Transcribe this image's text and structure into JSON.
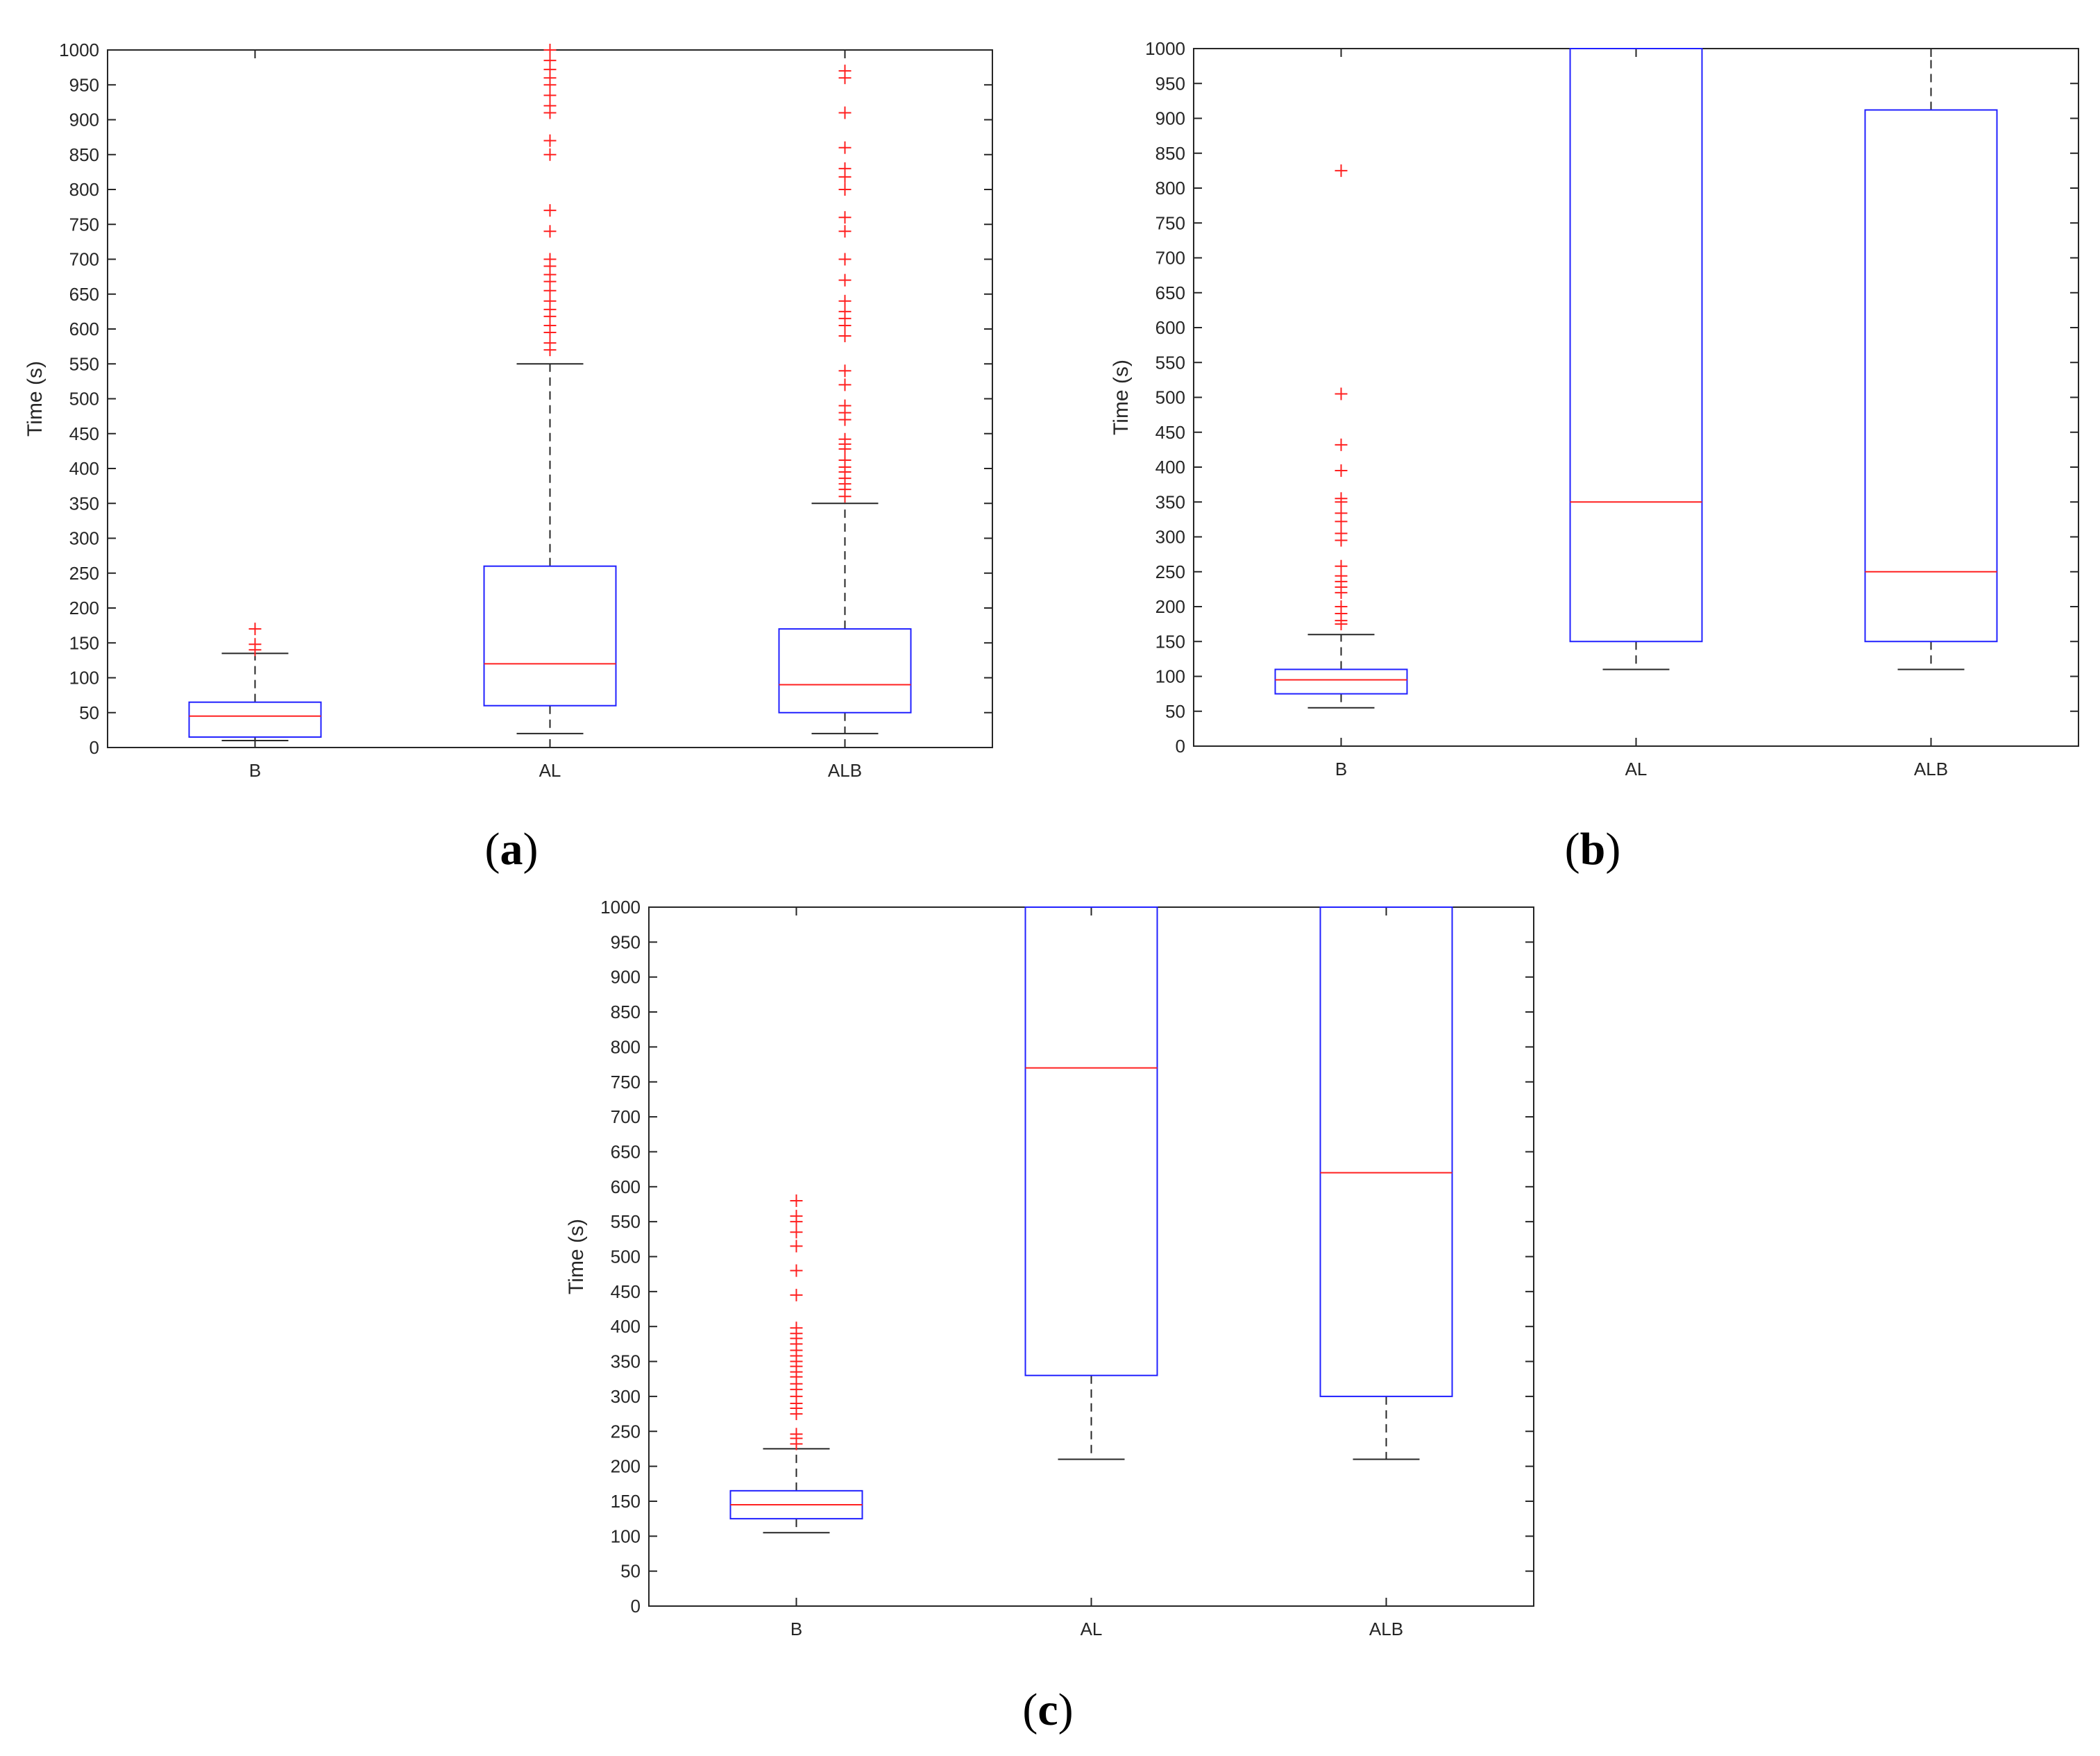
{
  "chart_data": [
    {
      "type": "box",
      "panel": "a",
      "caption": {
        "open": "(",
        "label": "a",
        "close": ")"
      },
      "title": "",
      "xlabel": "",
      "ylabel": "Time (s)",
      "ylim": [
        0,
        1000
      ],
      "yticks": [
        0,
        50,
        100,
        150,
        200,
        250,
        300,
        350,
        400,
        450,
        500,
        550,
        600,
        650,
        700,
        750,
        800,
        850,
        900,
        950,
        1000
      ],
      "categories": [
        "B",
        "AL",
        "ALB"
      ],
      "boxes": [
        {
          "name": "B",
          "whisker_low": 10,
          "q1": 15,
          "median": 45,
          "q3": 65,
          "whisker_high": 135,
          "outliers": [
            140,
            148,
            170
          ]
        },
        {
          "name": "AL",
          "whisker_low": 20,
          "q1": 60,
          "median": 120,
          "q3": 260,
          "whisker_high": 550,
          "outliers": [
            570,
            580,
            595,
            605,
            618,
            628,
            640,
            655,
            668,
            678,
            690,
            700,
            740,
            770,
            850,
            870,
            910,
            920,
            935,
            950,
            960,
            972,
            985,
            1000
          ]
        },
        {
          "name": "ALB",
          "whisker_low": 20,
          "q1": 50,
          "median": 90,
          "q3": 170,
          "whisker_high": 350,
          "outliers": [
            360,
            370,
            378,
            386,
            395,
            402,
            412,
            428,
            435,
            442,
            470,
            480,
            490,
            520,
            540,
            590,
            605,
            615,
            625,
            640,
            670,
            700,
            740,
            760,
            800,
            818,
            830,
            860,
            910,
            960,
            970
          ]
        }
      ]
    },
    {
      "type": "box",
      "panel": "b",
      "caption": {
        "open": "(",
        "label": "b",
        "close": ")"
      },
      "title": "",
      "xlabel": "",
      "ylabel": "Time (s)",
      "ylim": [
        0,
        1000
      ],
      "yticks": [
        0,
        50,
        100,
        150,
        200,
        250,
        300,
        350,
        400,
        450,
        500,
        550,
        600,
        650,
        700,
        750,
        800,
        850,
        900,
        950,
        1000
      ],
      "categories": [
        "B",
        "AL",
        "ALB"
      ],
      "boxes": [
        {
          "name": "B",
          "whisker_low": 55,
          "q1": 75,
          "median": 95,
          "q3": 110,
          "whisker_high": 160,
          "outliers": [
            175,
            180,
            190,
            200,
            220,
            228,
            236,
            244,
            258,
            295,
            305,
            322,
            334,
            350,
            355,
            395,
            432,
            505,
            825
          ]
        },
        {
          "name": "AL",
          "whisker_low": 110,
          "q1": 150,
          "median": 350,
          "q3": 1000,
          "whisker_high": 1000,
          "outliers": []
        },
        {
          "name": "ALB",
          "whisker_low": 110,
          "q1": 150,
          "median": 250,
          "q3": 912,
          "whisker_high": 1000,
          "outliers": []
        }
      ]
    },
    {
      "type": "box",
      "panel": "c",
      "caption": {
        "open": "(",
        "label": "c",
        "close": ")"
      },
      "title": "",
      "xlabel": "",
      "ylabel": "Time (s)",
      "ylim": [
        0,
        1000
      ],
      "yticks": [
        0,
        50,
        100,
        150,
        200,
        250,
        300,
        350,
        400,
        450,
        500,
        550,
        600,
        650,
        700,
        750,
        800,
        850,
        900,
        950,
        1000
      ],
      "categories": [
        "B",
        "AL",
        "ALB"
      ],
      "boxes": [
        {
          "name": "B",
          "whisker_low": 105,
          "q1": 125,
          "median": 145,
          "q3": 165,
          "whisker_high": 225,
          "outliers": [
            232,
            240,
            246,
            275,
            283,
            290,
            300,
            310,
            318,
            328,
            335,
            343,
            350,
            358,
            366,
            375,
            383,
            390,
            398,
            445,
            480,
            515,
            535,
            550,
            558,
            580
          ]
        },
        {
          "name": "AL",
          "whisker_low": 210,
          "q1": 330,
          "median": 770,
          "q3": 1000,
          "whisker_high": 1000,
          "outliers": []
        },
        {
          "name": "ALB",
          "whisker_low": 210,
          "q1": 300,
          "median": 620,
          "q3": 1000,
          "whisker_high": 1000,
          "outliers": []
        }
      ]
    }
  ]
}
